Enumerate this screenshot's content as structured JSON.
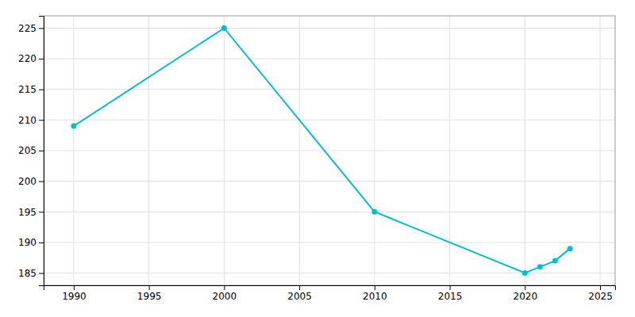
{
  "chart_data": {
    "type": "line",
    "x": [
      1990,
      2000,
      2010,
      2020,
      2021,
      2022,
      2023
    ],
    "values": [
      209,
      225,
      195,
      185,
      186,
      187,
      189
    ],
    "color": "#00bcd4",
    "marker": "circle",
    "xlim": [
      1988,
      2026
    ],
    "ylim": [
      183,
      227
    ],
    "xticks": [
      1990,
      1995,
      2000,
      2005,
      2010,
      2015,
      2020,
      2025
    ],
    "yticks": [
      185,
      190,
      195,
      200,
      205,
      210,
      215,
      220,
      225
    ],
    "grid": true
  }
}
